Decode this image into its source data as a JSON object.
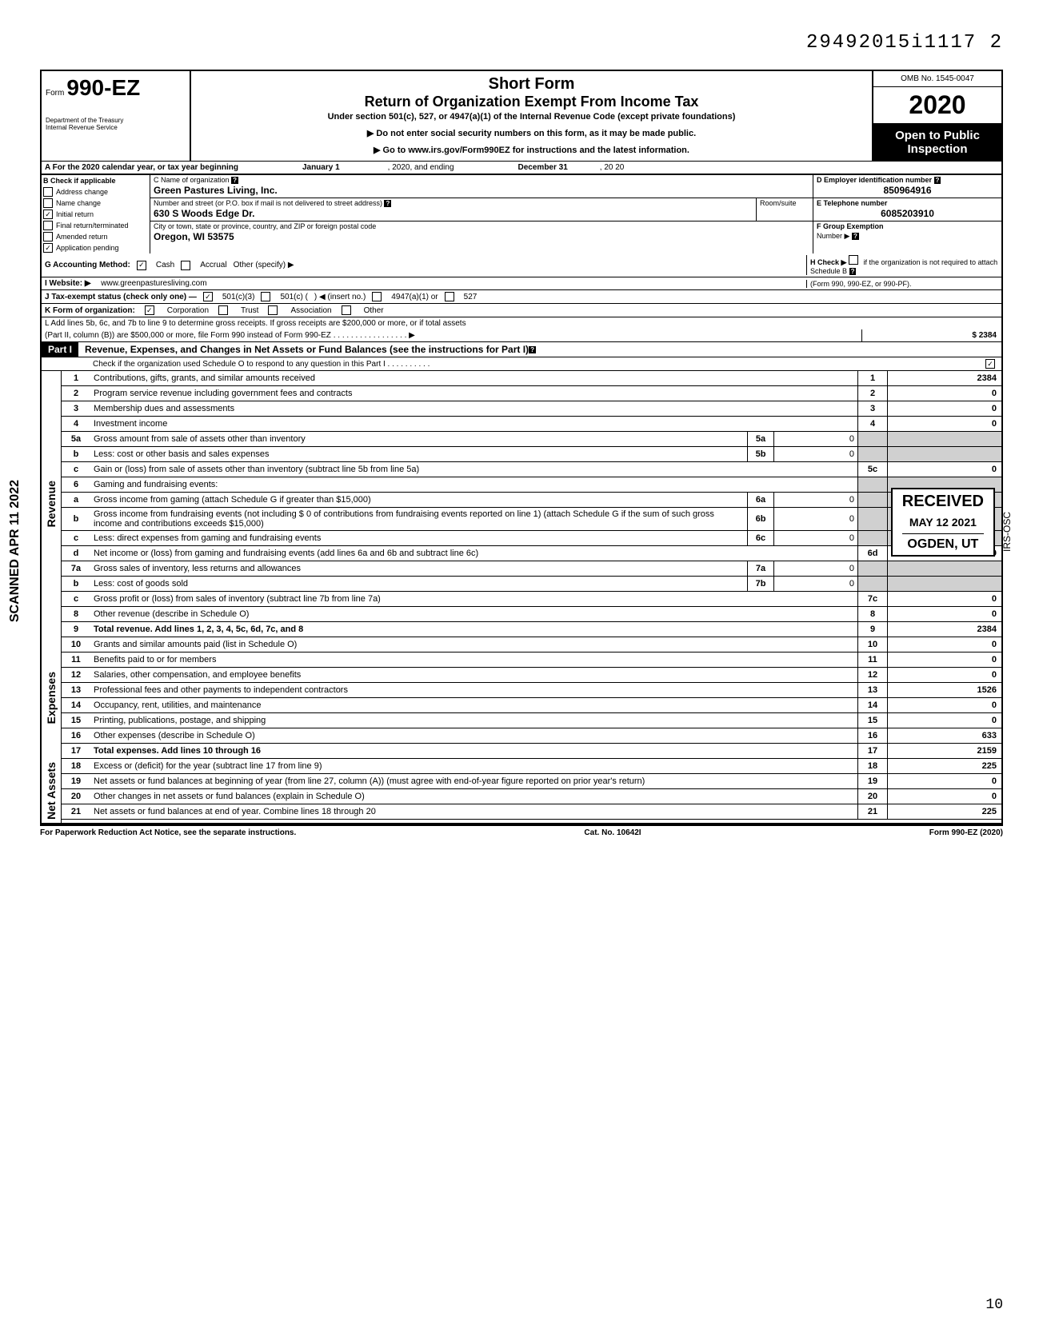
{
  "top_number": "29492015i1117 2",
  "form": {
    "label": "Form",
    "number": "990-EZ",
    "dept": "Department of the Treasury\nInternal Revenue Service"
  },
  "title": {
    "short_form": "Short Form",
    "main": "Return of Organization Exempt From Income Tax",
    "under": "Under section 501(c), 527, or 4947(a)(1) of the Internal Revenue Code (except private foundations)",
    "ssn": "▶ Do not enter social security numbers on this form, as it may be made public.",
    "goto": "▶ Go to www.irs.gov/Form990EZ for instructions and the latest information."
  },
  "omb": {
    "number": "OMB No. 1545-0047",
    "year": "2020",
    "open": "Open to Public",
    "inspection": "Inspection"
  },
  "section_a": {
    "label": "A  For the 2020 calendar year, or tax year beginning",
    "begin": "January 1",
    "mid": ", 2020, and ending",
    "end_month": "December 31",
    "end_year": ", 20   20"
  },
  "section_b": {
    "header": "B  Check if applicable",
    "items": [
      "Address change",
      "Name change",
      "Initial return",
      "Final return/terminated",
      "Amended return",
      "Application pending"
    ],
    "checked": [
      false,
      false,
      true,
      false,
      false,
      true
    ]
  },
  "section_c": {
    "name_label": "C  Name of organization",
    "name": "Green Pastures Living, Inc.",
    "addr_label": "Number and street (or P.O. box if mail is not delivered to street address)",
    "room_label": "Room/suite",
    "addr": "630 S Woods Edge Dr.",
    "city_label": "City or town, state or province, country, and ZIP or foreign postal code",
    "city": "Oregon, WI 53575"
  },
  "section_d": {
    "ein_label": "D Employer identification number",
    "ein": "850964916",
    "phone_label": "E Telephone number",
    "phone": "6085203910",
    "group_label": "F Group Exemption",
    "number_label": "Number  ▶"
  },
  "row_g": {
    "label": "G  Accounting Method:",
    "cash": "Cash",
    "accrual": "Accrual",
    "other": "Other (specify) ▶",
    "h_label": "H  Check ▶",
    "h_text": "if the organization is not required to attach Schedule B",
    "h_text2": "(Form 990, 990-EZ, or 990-PF)."
  },
  "row_i": {
    "label": "I   Website: ▶",
    "value": "www.greenpasturesliving.com"
  },
  "row_j": {
    "label": "J  Tax-exempt status (check only one) —",
    "opt1": "501(c)(3)",
    "opt2": "501(c) (",
    "insert": ")  ◀ (insert no.)",
    "opt3": "4947(a)(1) or",
    "opt4": "527"
  },
  "row_k": {
    "label": "K  Form of organization:",
    "corp": "Corporation",
    "trust": "Trust",
    "assoc": "Association",
    "other": "Other"
  },
  "row_l": {
    "line1": "L  Add lines 5b, 6c, and 7b to line 9 to determine gross receipts. If gross receipts are $200,000 or more, or if total assets",
    "line2": "(Part II, column (B)) are $500,000 or more, file Form 990 instead of Form 990-EZ",
    "amount": "2384"
  },
  "part1": {
    "label": "Part I",
    "title": "Revenue, Expenses, and Changes in Net Assets or Fund Balances (see the instructions for Part I)",
    "check": "Check if the organization used Schedule O to respond to any question in this Part I"
  },
  "sections": {
    "revenue": "Revenue",
    "expenses": "Expenses",
    "net_assets": "Net Assets"
  },
  "lines": [
    {
      "n": "1",
      "desc": "Contributions, gifts, grants, and similar amounts received",
      "box": "1",
      "amt": "2384"
    },
    {
      "n": "2",
      "desc": "Program service revenue including government fees and contracts",
      "box": "2",
      "amt": "0"
    },
    {
      "n": "3",
      "desc": "Membership dues and assessments",
      "box": "3",
      "amt": "0"
    },
    {
      "n": "4",
      "desc": "Investment income",
      "box": "4",
      "amt": "0"
    },
    {
      "n": "5a",
      "desc": "Gross amount from sale of assets other than inventory",
      "mid_box": "5a",
      "mid_amt": "0"
    },
    {
      "n": "b",
      "desc": "Less: cost or other basis and sales expenses",
      "mid_box": "5b",
      "mid_amt": "0"
    },
    {
      "n": "c",
      "desc": "Gain or (loss) from sale of assets other than inventory (subtract line 5b from line 5a)",
      "box": "5c",
      "amt": "0"
    },
    {
      "n": "6",
      "desc": "Gaming and fundraising events:"
    },
    {
      "n": "a",
      "desc": "Gross income from gaming (attach Schedule G if greater than $15,000)",
      "mid_box": "6a",
      "mid_amt": "0"
    },
    {
      "n": "b",
      "desc": "Gross income from fundraising events (not including  $             0  of contributions from fundraising events reported on line 1) (attach Schedule G if the sum of such gross income and contributions exceeds $15,000)",
      "mid_box": "6b",
      "mid_amt": "0"
    },
    {
      "n": "c",
      "desc": "Less: direct expenses from gaming and fundraising events",
      "mid_box": "6c",
      "mid_amt": "0"
    },
    {
      "n": "d",
      "desc": "Net income or (loss) from gaming and fundraising events (add lines 6a and 6b and subtract line 6c)",
      "box": "6d",
      "amt": "0"
    },
    {
      "n": "7a",
      "desc": "Gross sales of inventory, less returns and allowances",
      "mid_box": "7a",
      "mid_amt": "0"
    },
    {
      "n": "b",
      "desc": "Less: cost of goods sold",
      "mid_box": "7b",
      "mid_amt": "0"
    },
    {
      "n": "c",
      "desc": "Gross profit or (loss) from sales of inventory (subtract line 7b from line 7a)",
      "box": "7c",
      "amt": "0"
    },
    {
      "n": "8",
      "desc": "Other revenue (describe in Schedule O)",
      "box": "8",
      "amt": "0"
    },
    {
      "n": "9",
      "desc": "Total revenue. Add lines 1, 2, 3, 4, 5c, 6d, 7c, and 8",
      "box": "9",
      "amt": "2384",
      "bold": true
    }
  ],
  "expense_lines": [
    {
      "n": "10",
      "desc": "Grants and similar amounts paid (list in Schedule O)",
      "box": "10",
      "amt": "0"
    },
    {
      "n": "11",
      "desc": "Benefits paid to or for members",
      "box": "11",
      "amt": "0"
    },
    {
      "n": "12",
      "desc": "Salaries, other compensation, and employee benefits",
      "box": "12",
      "amt": "0"
    },
    {
      "n": "13",
      "desc": "Professional fees and other payments to independent contractors",
      "box": "13",
      "amt": "1526"
    },
    {
      "n": "14",
      "desc": "Occupancy, rent, utilities, and maintenance",
      "box": "14",
      "amt": "0"
    },
    {
      "n": "15",
      "desc": "Printing, publications, postage, and shipping",
      "box": "15",
      "amt": "0"
    },
    {
      "n": "16",
      "desc": "Other expenses (describe in Schedule O)",
      "box": "16",
      "amt": "633"
    },
    {
      "n": "17",
      "desc": "Total expenses. Add lines 10 through 16",
      "box": "17",
      "amt": "2159",
      "bold": true
    }
  ],
  "net_lines": [
    {
      "n": "18",
      "desc": "Excess or (deficit) for the year (subtract line 17 from line 9)",
      "box": "18",
      "amt": "225"
    },
    {
      "n": "19",
      "desc": "Net assets or fund balances at beginning of year (from line 27, column (A)) (must agree with end-of-year figure reported on prior year's return)",
      "box": "19",
      "amt": "0"
    },
    {
      "n": "20",
      "desc": "Other changes in net assets or fund balances (explain in Schedule O)",
      "box": "20",
      "amt": "0"
    },
    {
      "n": "21",
      "desc": "Net assets or fund balances at end of year. Combine lines 18 through 20",
      "box": "21",
      "amt": "225"
    }
  ],
  "footer": {
    "left": "For Paperwork Reduction Act Notice, see the separate instructions.",
    "center": "Cat. No. 10642I",
    "right": "Form 990-EZ (2020)"
  },
  "stamps": {
    "scanned": "SCANNED APR 11 2022",
    "received": "RECEIVED",
    "received_date": "MAY 12 2021",
    "received_loc": "OGDEN, UT",
    "irs_osc": "IRS-OSC",
    "page": "10"
  }
}
